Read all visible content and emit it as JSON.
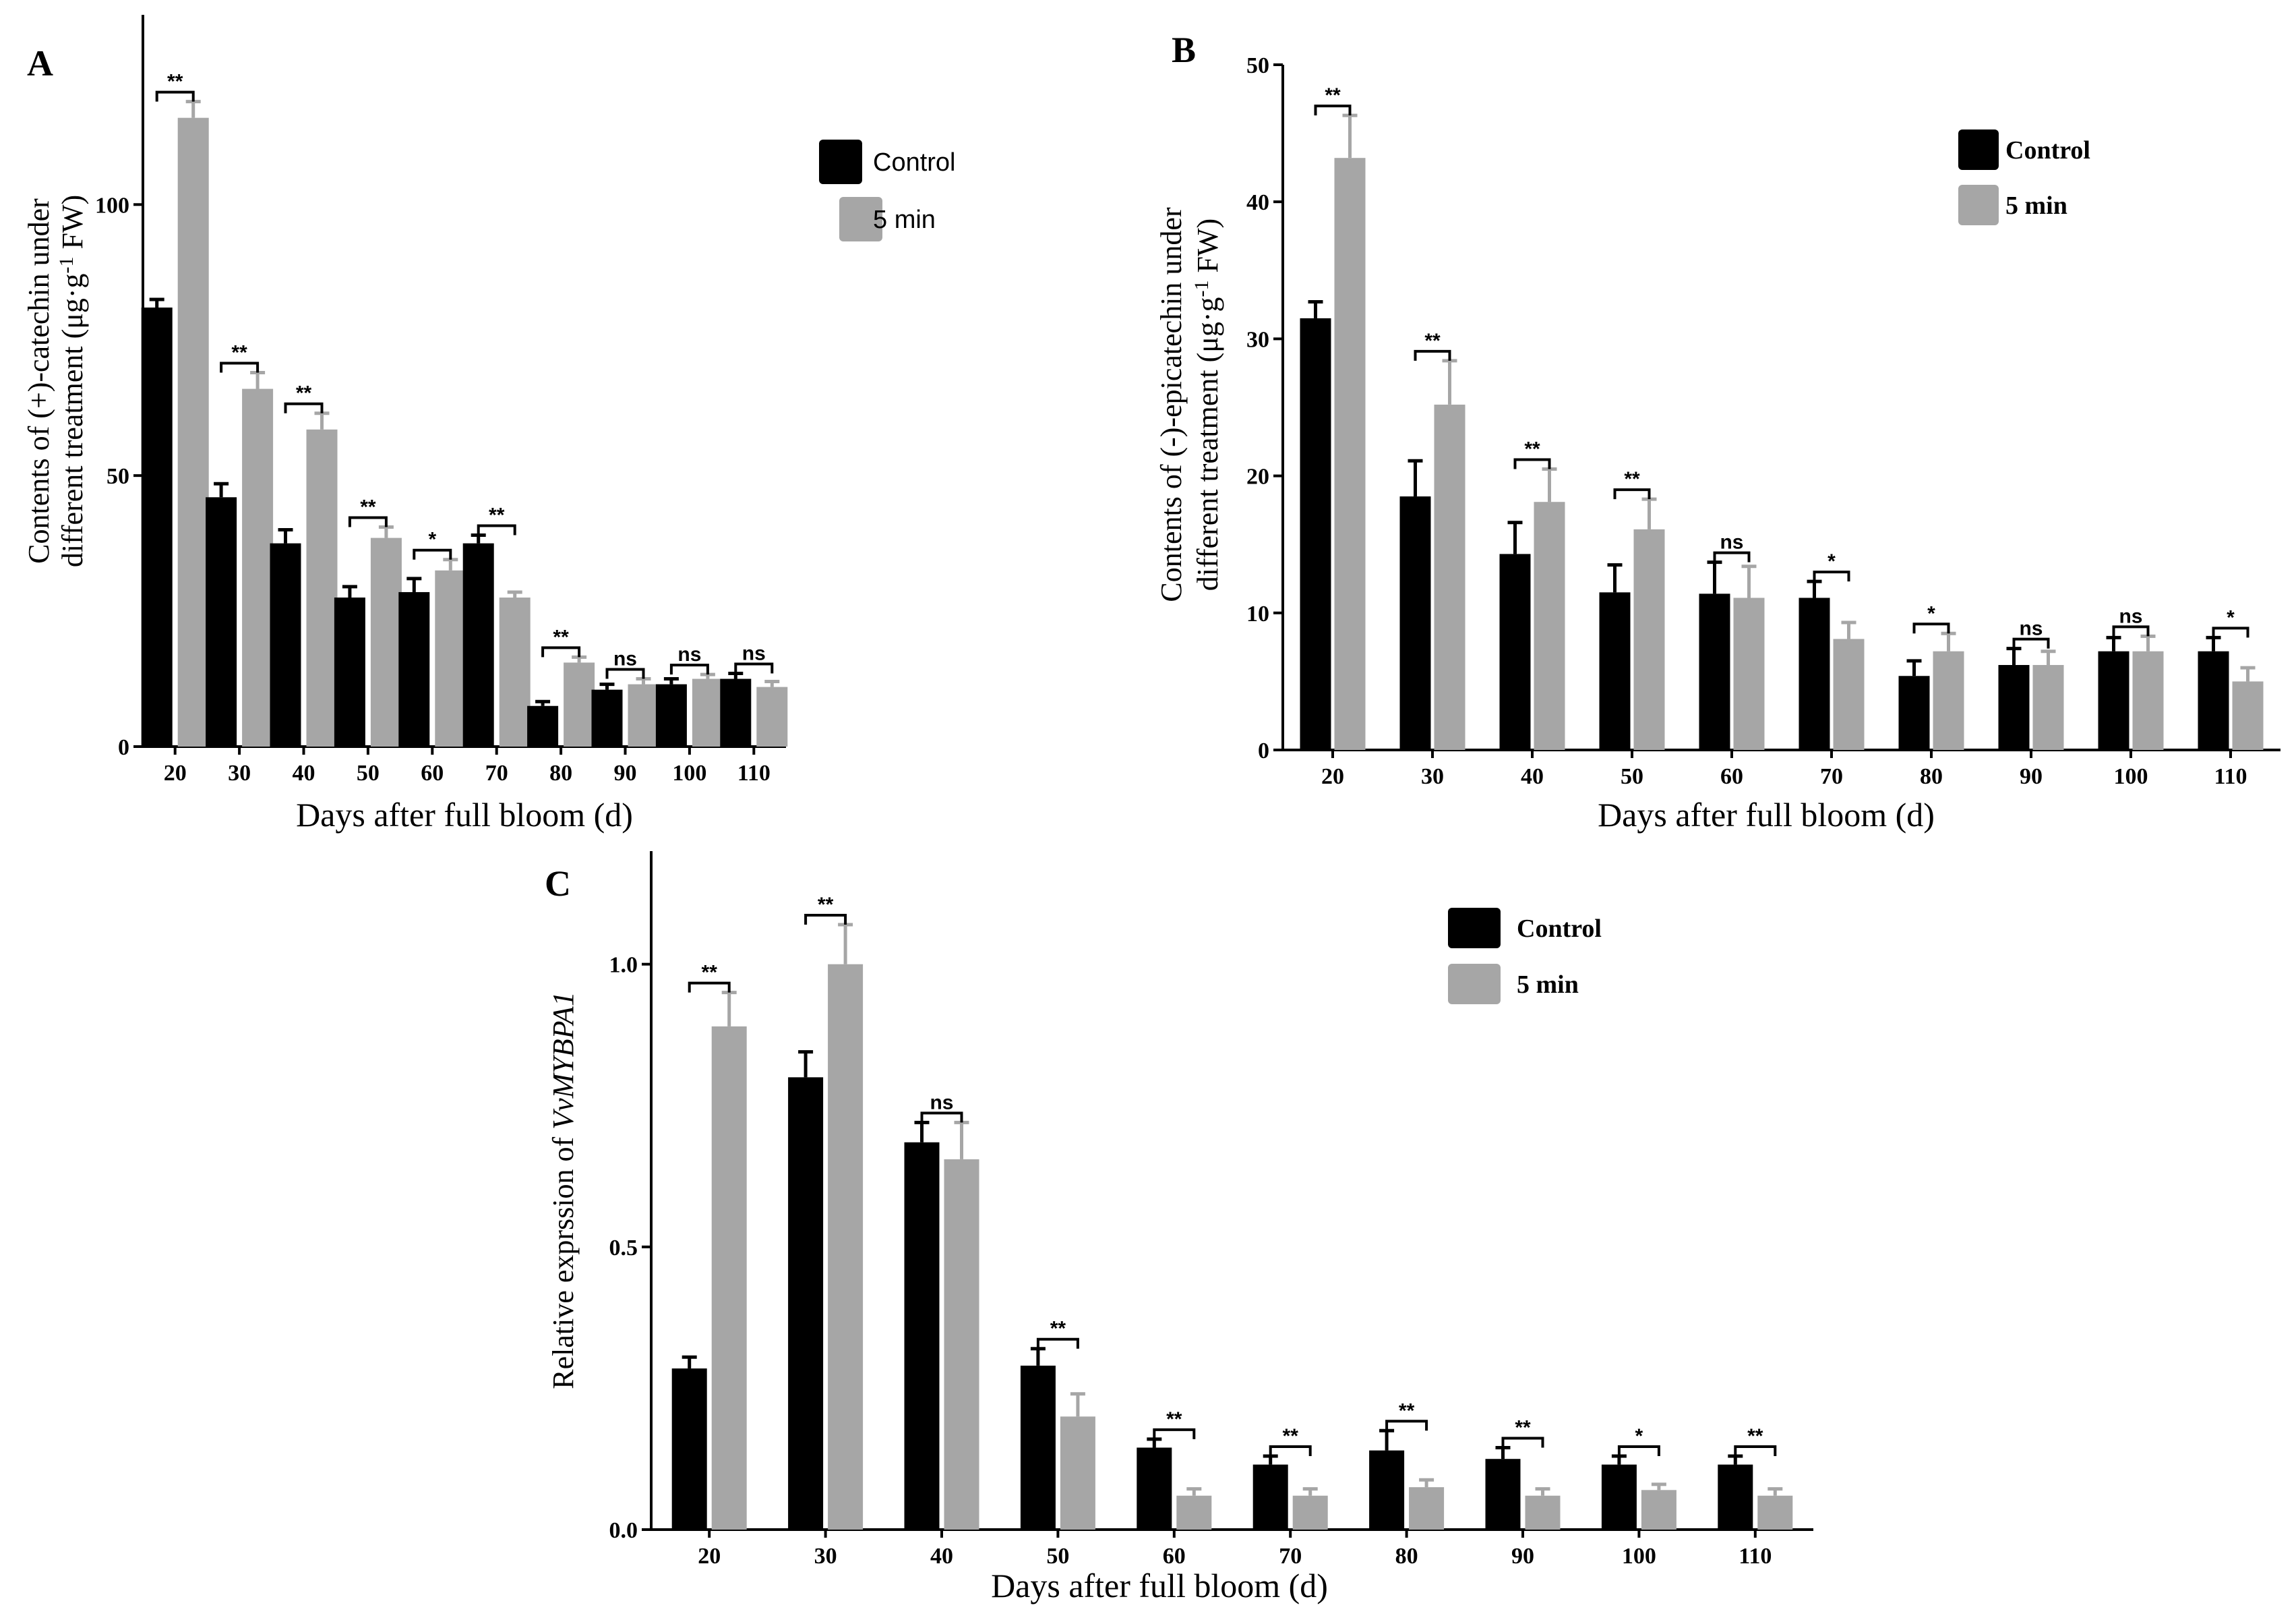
{
  "colors": {
    "control": "#000000",
    "treatment": "#a6a6a6",
    "axis": "#000000"
  },
  "chart_data": [
    {
      "panel": "A",
      "type": "bar",
      "xlabel": "Days after full bloom (d)",
      "ylabel_line1": "Contents of (+)-catechin under",
      "ylabel_line2_pre": "different treatment (μg·g",
      "ylabel_sup": "-1",
      "ylabel_line2_post": " FW)",
      "ylim": [
        0,
        135
      ],
      "yticks": [
        {
          "v": 0,
          "label": "0"
        },
        {
          "v": 50,
          "label": "50"
        },
        {
          "v": 100,
          "label": "100"
        }
      ],
      "categories": [
        "20",
        "30",
        "40",
        "50",
        "60",
        "70",
        "80",
        "90",
        "100",
        "110"
      ],
      "legend": [
        "Control",
        "5 min"
      ],
      "legend_bold": false,
      "series": [
        {
          "name": "Control",
          "values": [
            81,
            46,
            37.5,
            27.5,
            28.5,
            37.5,
            7.5,
            10.5,
            11.5,
            12.5
          ],
          "errors": [
            1.5,
            2.5,
            2.5,
            2,
            2.5,
            1.5,
            0.8,
            1,
            1,
            1
          ]
        },
        {
          "name": "5 min",
          "values": [
            116,
            66,
            58.5,
            38.5,
            32.5,
            27.5,
            15.5,
            11.5,
            12.5,
            11
          ],
          "errors": [
            3,
            3,
            3,
            2,
            2,
            1,
            1,
            1,
            0.8,
            1
          ]
        }
      ],
      "significance": [
        "**",
        "**",
        "**",
        "**",
        "*",
        "**",
        "**",
        "ns",
        "ns",
        "ns"
      ]
    },
    {
      "panel": "B",
      "type": "bar",
      "xlabel": "Days after full bloom (d)",
      "ylabel_line1": "Contents of (-)-epicatechin under",
      "ylabel_line2_pre": "different treatment (μg·g",
      "ylabel_sup": "-1",
      "ylabel_line2_post": " FW)",
      "ylim": [
        0,
        50
      ],
      "yticks": [
        {
          "v": 0,
          "label": "0"
        },
        {
          "v": 10,
          "label": "10"
        },
        {
          "v": 20,
          "label": "20"
        },
        {
          "v": 30,
          "label": "30"
        },
        {
          "v": 40,
          "label": "40"
        },
        {
          "v": 50,
          "label": "50"
        }
      ],
      "categories": [
        "20",
        "30",
        "40",
        "50",
        "60",
        "70",
        "80",
        "90",
        "100",
        "110"
      ],
      "legend": [
        "Control",
        "5 min"
      ],
      "legend_bold": true,
      "series": [
        {
          "name": "Control",
          "values": [
            31.5,
            18.5,
            14.3,
            11.5,
            11.4,
            11.1,
            5.4,
            6.2,
            7.2,
            7.2
          ],
          "errors": [
            1.2,
            2.6,
            2.3,
            2,
            2.3,
            1.2,
            1.1,
            1.2,
            1,
            1
          ]
        },
        {
          "name": "5 min",
          "values": [
            43.2,
            25.2,
            18.1,
            16.1,
            11.1,
            8.1,
            7.2,
            6.2,
            7.2,
            5
          ],
          "errors": [
            3.1,
            3.2,
            2.4,
            2.2,
            2.3,
            1.2,
            1.3,
            1,
            1.1,
            1
          ]
        }
      ],
      "significance": [
        "**",
        "**",
        "**",
        "**",
        "ns",
        "*",
        "*",
        "ns",
        "ns",
        "*"
      ]
    },
    {
      "panel": "C",
      "type": "bar",
      "xlabel": "Days after full bloom (d)",
      "ylabel_pre": "Relative exprssion of ",
      "ylabel_gene": "VvMYBPA1",
      "ylim": [
        0,
        1.2
      ],
      "yticks": [
        {
          "v": 0,
          "label": "0.0"
        },
        {
          "v": 0.5,
          "label": "0.5"
        },
        {
          "v": 1.0,
          "label": "1.0"
        }
      ],
      "categories": [
        "20",
        "30",
        "40",
        "50",
        "60",
        "70",
        "80",
        "90",
        "100",
        "110"
      ],
      "legend": [
        "Control",
        "5 min"
      ],
      "legend_bold": true,
      "series": [
        {
          "name": "Control",
          "values": [
            0.285,
            0.8,
            0.685,
            0.29,
            0.145,
            0.115,
            0.14,
            0.125,
            0.115,
            0.115
          ],
          "errors": [
            0.02,
            0.045,
            0.035,
            0.03,
            0.015,
            0.015,
            0.035,
            0.02,
            0.015,
            0.015
          ]
        },
        {
          "name": "5 min",
          "values": [
            0.89,
            1.0,
            0.655,
            0.2,
            0.06,
            0.06,
            0.075,
            0.06,
            0.07,
            0.06
          ],
          "errors": [
            0.06,
            0.07,
            0.065,
            0.04,
            0.012,
            0.012,
            0.013,
            0.012,
            0.01,
            0.012
          ]
        }
      ],
      "significance": [
        "**",
        "**",
        "ns",
        "**",
        "**",
        "**",
        "**",
        "**",
        "*",
        "**"
      ]
    }
  ]
}
